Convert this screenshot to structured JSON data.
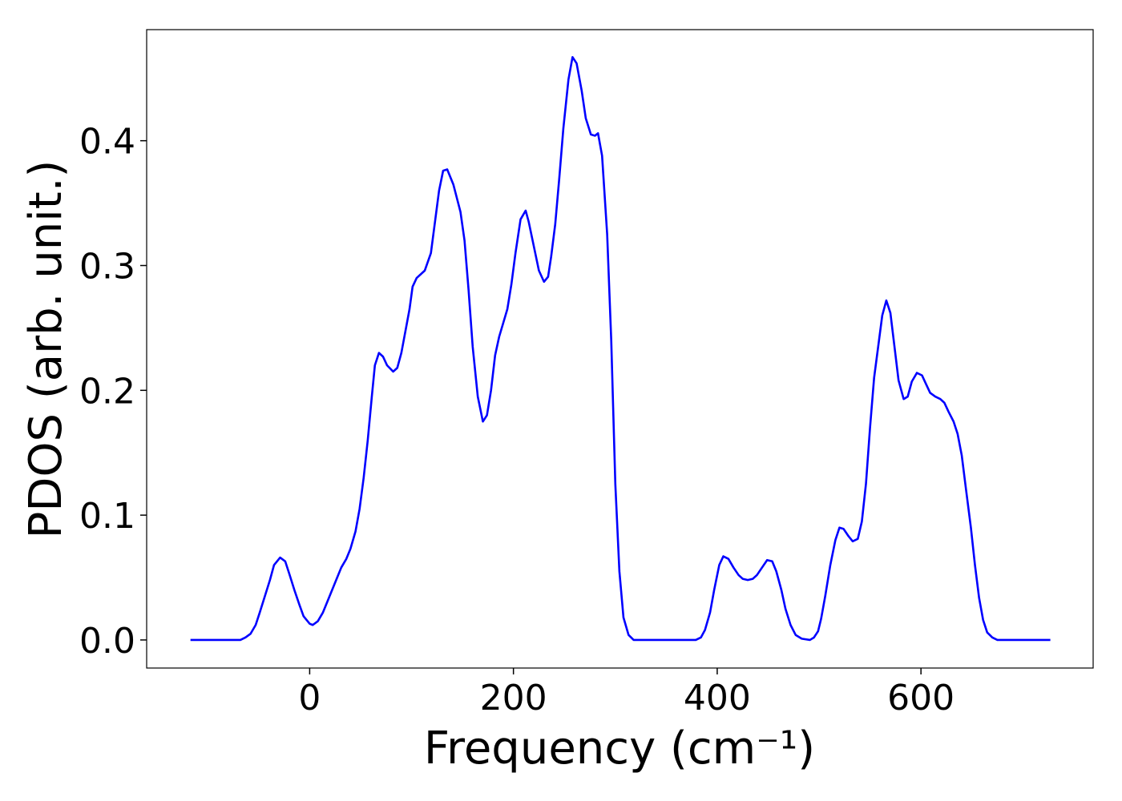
{
  "chart_data": {
    "type": "line",
    "xlabel": "Frequency (cm⁻¹)",
    "ylabel": "PDOS (arb. unit.)",
    "xlim": [
      -160,
      769
    ],
    "ylim": [
      -0.0225,
      0.489
    ],
    "xticks": [
      0,
      200,
      400,
      600
    ],
    "yticks": [
      {
        "value": 0,
        "label": "0.0"
      },
      0.1,
      0.2,
      0.3,
      0.4
    ],
    "series": [
      {
        "color": "#0000ff",
        "x": [
          -117,
          -68,
          -63,
          -58,
          -53,
          -49,
          -44,
          -39,
          -35,
          -29,
          -24,
          -20,
          -15,
          -10,
          -6,
          0,
          3,
          8,
          13,
          17,
          22,
          27,
          31,
          36,
          40,
          45,
          49,
          53,
          57,
          61,
          64,
          68,
          72,
          76,
          82,
          86,
          90,
          98,
          101,
          105,
          113,
          119,
          127,
          131,
          135,
          141,
          148,
          152,
          156,
          160,
          165,
          170,
          174,
          178,
          182,
          186,
          194,
          198,
          202,
          207,
          212,
          215,
          225,
          230,
          234,
          237,
          241,
          245,
          249,
          254,
          258,
          262,
          267,
          271,
          276,
          280,
          283,
          287,
          292,
          296,
          300,
          304,
          308,
          313,
          318,
          379,
          384,
          388,
          393,
          397,
          402,
          406,
          411,
          416,
          421,
          425,
          430,
          435,
          439,
          444,
          449,
          454,
          458,
          463,
          467,
          472,
          477,
          483,
          491,
          495,
          499,
          502,
          506,
          511,
          516,
          520,
          524,
          529,
          533,
          538,
          542,
          546,
          550,
          554,
          558,
          562,
          566,
          570,
          574,
          578,
          583,
          587,
          591,
          596,
          601,
          605,
          609,
          614,
          619,
          623,
          627,
          632,
          636,
          640,
          644,
          649,
          653,
          657,
          661,
          665,
          670,
          675,
          727
        ],
        "values": [
          0,
          0,
          0.002,
          0.005,
          0.012,
          0.022,
          0.035,
          0.048,
          0.06,
          0.066,
          0.063,
          0.053,
          0.04,
          0.028,
          0.019,
          0.013,
          0.012,
          0.015,
          0.022,
          0.03,
          0.04,
          0.05,
          0.058,
          0.065,
          0.073,
          0.087,
          0.105,
          0.13,
          0.16,
          0.195,
          0.22,
          0.23,
          0.227,
          0.22,
          0.215,
          0.218,
          0.23,
          0.265,
          0.283,
          0.29,
          0.296,
          0.31,
          0.36,
          0.376,
          0.377,
          0.365,
          0.343,
          0.32,
          0.28,
          0.235,
          0.195,
          0.175,
          0.18,
          0.2,
          0.228,
          0.243,
          0.265,
          0.285,
          0.31,
          0.337,
          0.344,
          0.335,
          0.296,
          0.287,
          0.291,
          0.307,
          0.333,
          0.37,
          0.41,
          0.449,
          0.467,
          0.462,
          0.44,
          0.418,
          0.405,
          0.404,
          0.406,
          0.388,
          0.325,
          0.24,
          0.125,
          0.055,
          0.018,
          0.004,
          0,
          0,
          0.002,
          0.008,
          0.022,
          0.04,
          0.06,
          0.067,
          0.065,
          0.058,
          0.052,
          0.049,
          0.048,
          0.049,
          0.052,
          0.058,
          0.064,
          0.063,
          0.055,
          0.04,
          0.025,
          0.012,
          0.004,
          0.001,
          0,
          0.002,
          0.007,
          0.017,
          0.035,
          0.06,
          0.08,
          0.09,
          0.089,
          0.083,
          0.079,
          0.081,
          0.095,
          0.125,
          0.17,
          0.21,
          0.235,
          0.26,
          0.272,
          0.262,
          0.235,
          0.208,
          0.193,
          0.195,
          0.207,
          0.214,
          0.212,
          0.205,
          0.198,
          0.195,
          0.193,
          0.19,
          0.183,
          0.175,
          0.165,
          0.148,
          0.122,
          0.09,
          0.06,
          0.034,
          0.016,
          0.006,
          0.002,
          0,
          0
        ]
      }
    ]
  }
}
